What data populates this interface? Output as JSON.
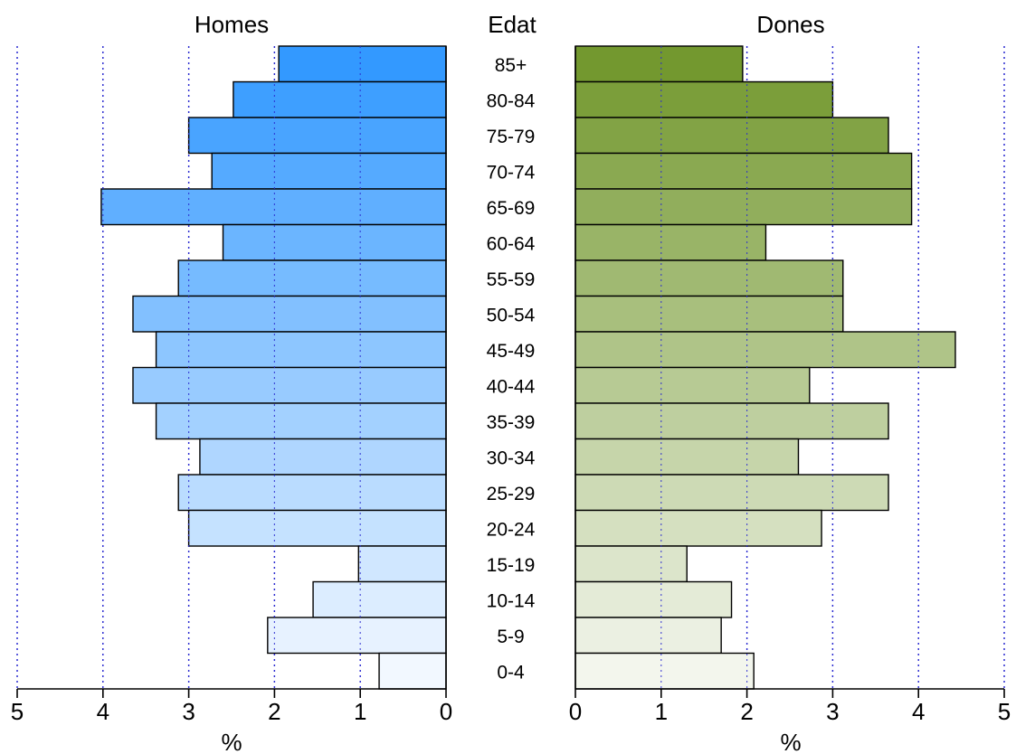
{
  "chart_data": {
    "type": "bar",
    "title_left": "Homes",
    "title_center": "Edat",
    "title_right": "Dones",
    "xlabel_left": "%",
    "xlabel_right": "%",
    "xlim": [
      0,
      5
    ],
    "xticks": [
      "0",
      "1",
      "2",
      "3",
      "4",
      "5"
    ],
    "grid": "vertical dotted",
    "categories": [
      "85+",
      "80-84",
      "75-79",
      "70-74",
      "65-69",
      "60-64",
      "55-59",
      "50-54",
      "45-49",
      "40-44",
      "35-39",
      "30-34",
      "25-29",
      "20-24",
      "15-19",
      "10-14",
      "5-9",
      "0-4"
    ],
    "series": [
      {
        "name": "Homes",
        "color_dark": "#3399ff",
        "color_light": "#f2f8ff",
        "values": [
          1.95,
          2.48,
          3.0,
          2.73,
          4.02,
          2.6,
          3.12,
          3.65,
          3.38,
          3.65,
          3.38,
          2.87,
          3.12,
          3.0,
          1.02,
          1.55,
          2.08,
          0.78
        ]
      },
      {
        "name": "Dones",
        "color_dark": "#73982f",
        "color_light": "#f3f6ed",
        "values": [
          1.95,
          3.0,
          3.65,
          3.92,
          3.92,
          2.22,
          3.12,
          3.12,
          4.43,
          2.73,
          3.65,
          2.6,
          3.65,
          2.87,
          1.3,
          1.82,
          1.7,
          2.08
        ]
      }
    ]
  }
}
